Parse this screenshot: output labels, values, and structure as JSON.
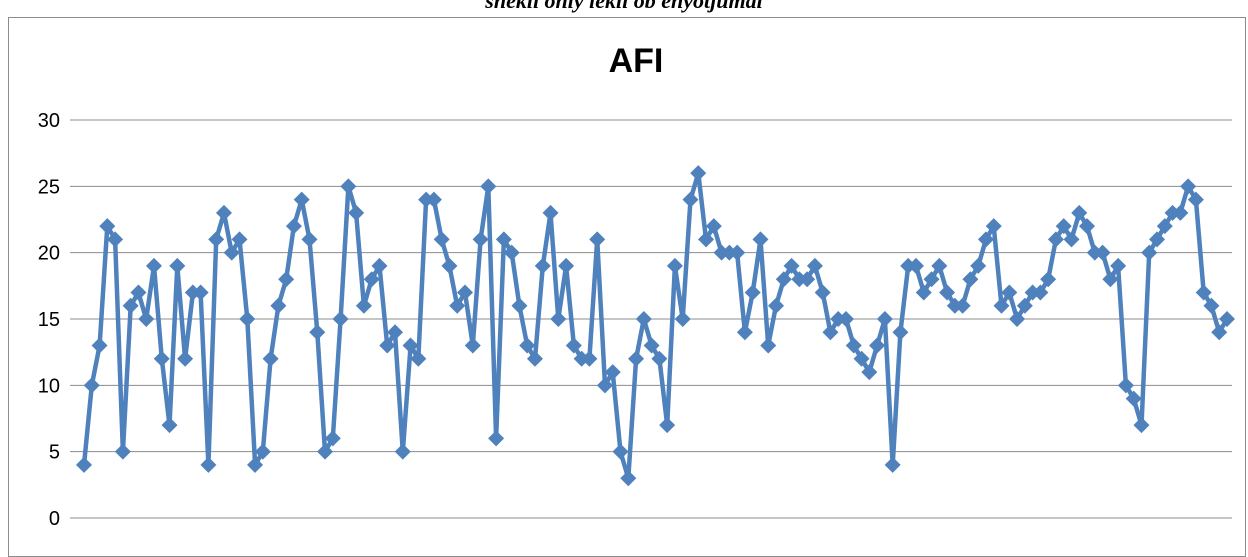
{
  "page": {
    "caption": "shekli ohly lekli ob ehyotjumal"
  },
  "chart_data": {
    "type": "line",
    "title": "AFI",
    "xlabel": "",
    "ylabel": "",
    "ylim": [
      0,
      30
    ],
    "yticks": [
      "0",
      "5",
      "10",
      "15",
      "20",
      "25",
      "30"
    ],
    "grid": true,
    "legend": "none",
    "marker": "diamond",
    "series": [
      {
        "name": "",
        "color": "#4F81BD",
        "values": [
          4,
          10,
          13,
          22,
          21,
          5,
          16,
          17,
          15,
          19,
          12,
          7,
          19,
          12,
          17,
          17,
          4,
          21,
          23,
          20,
          21,
          15,
          4,
          5,
          12,
          16,
          18,
          22,
          24,
          21,
          14,
          5,
          6,
          15,
          25,
          23,
          16,
          18,
          19,
          13,
          14,
          5,
          13,
          12,
          24,
          24,
          21,
          19,
          16,
          17,
          13,
          21,
          25,
          6,
          21,
          20,
          16,
          13,
          12,
          19,
          23,
          15,
          19,
          13,
          12,
          12,
          21,
          10,
          11,
          5,
          3,
          12,
          15,
          13,
          12,
          7,
          19,
          15,
          24,
          26,
          21,
          22,
          20,
          20,
          20,
          14,
          17,
          21,
          13,
          16,
          18,
          19,
          18,
          18,
          19,
          17,
          14,
          15,
          15,
          13,
          12,
          11,
          13,
          15,
          4,
          14,
          19,
          19,
          17,
          18,
          19,
          17,
          16,
          16,
          18,
          19,
          21,
          22,
          16,
          17,
          15,
          16,
          17,
          17,
          18,
          21,
          22,
          21,
          23,
          22,
          20,
          20,
          18,
          19,
          10,
          9,
          7,
          20,
          21,
          22,
          23,
          23,
          25,
          24,
          17,
          16,
          14,
          15
        ]
      }
    ]
  }
}
